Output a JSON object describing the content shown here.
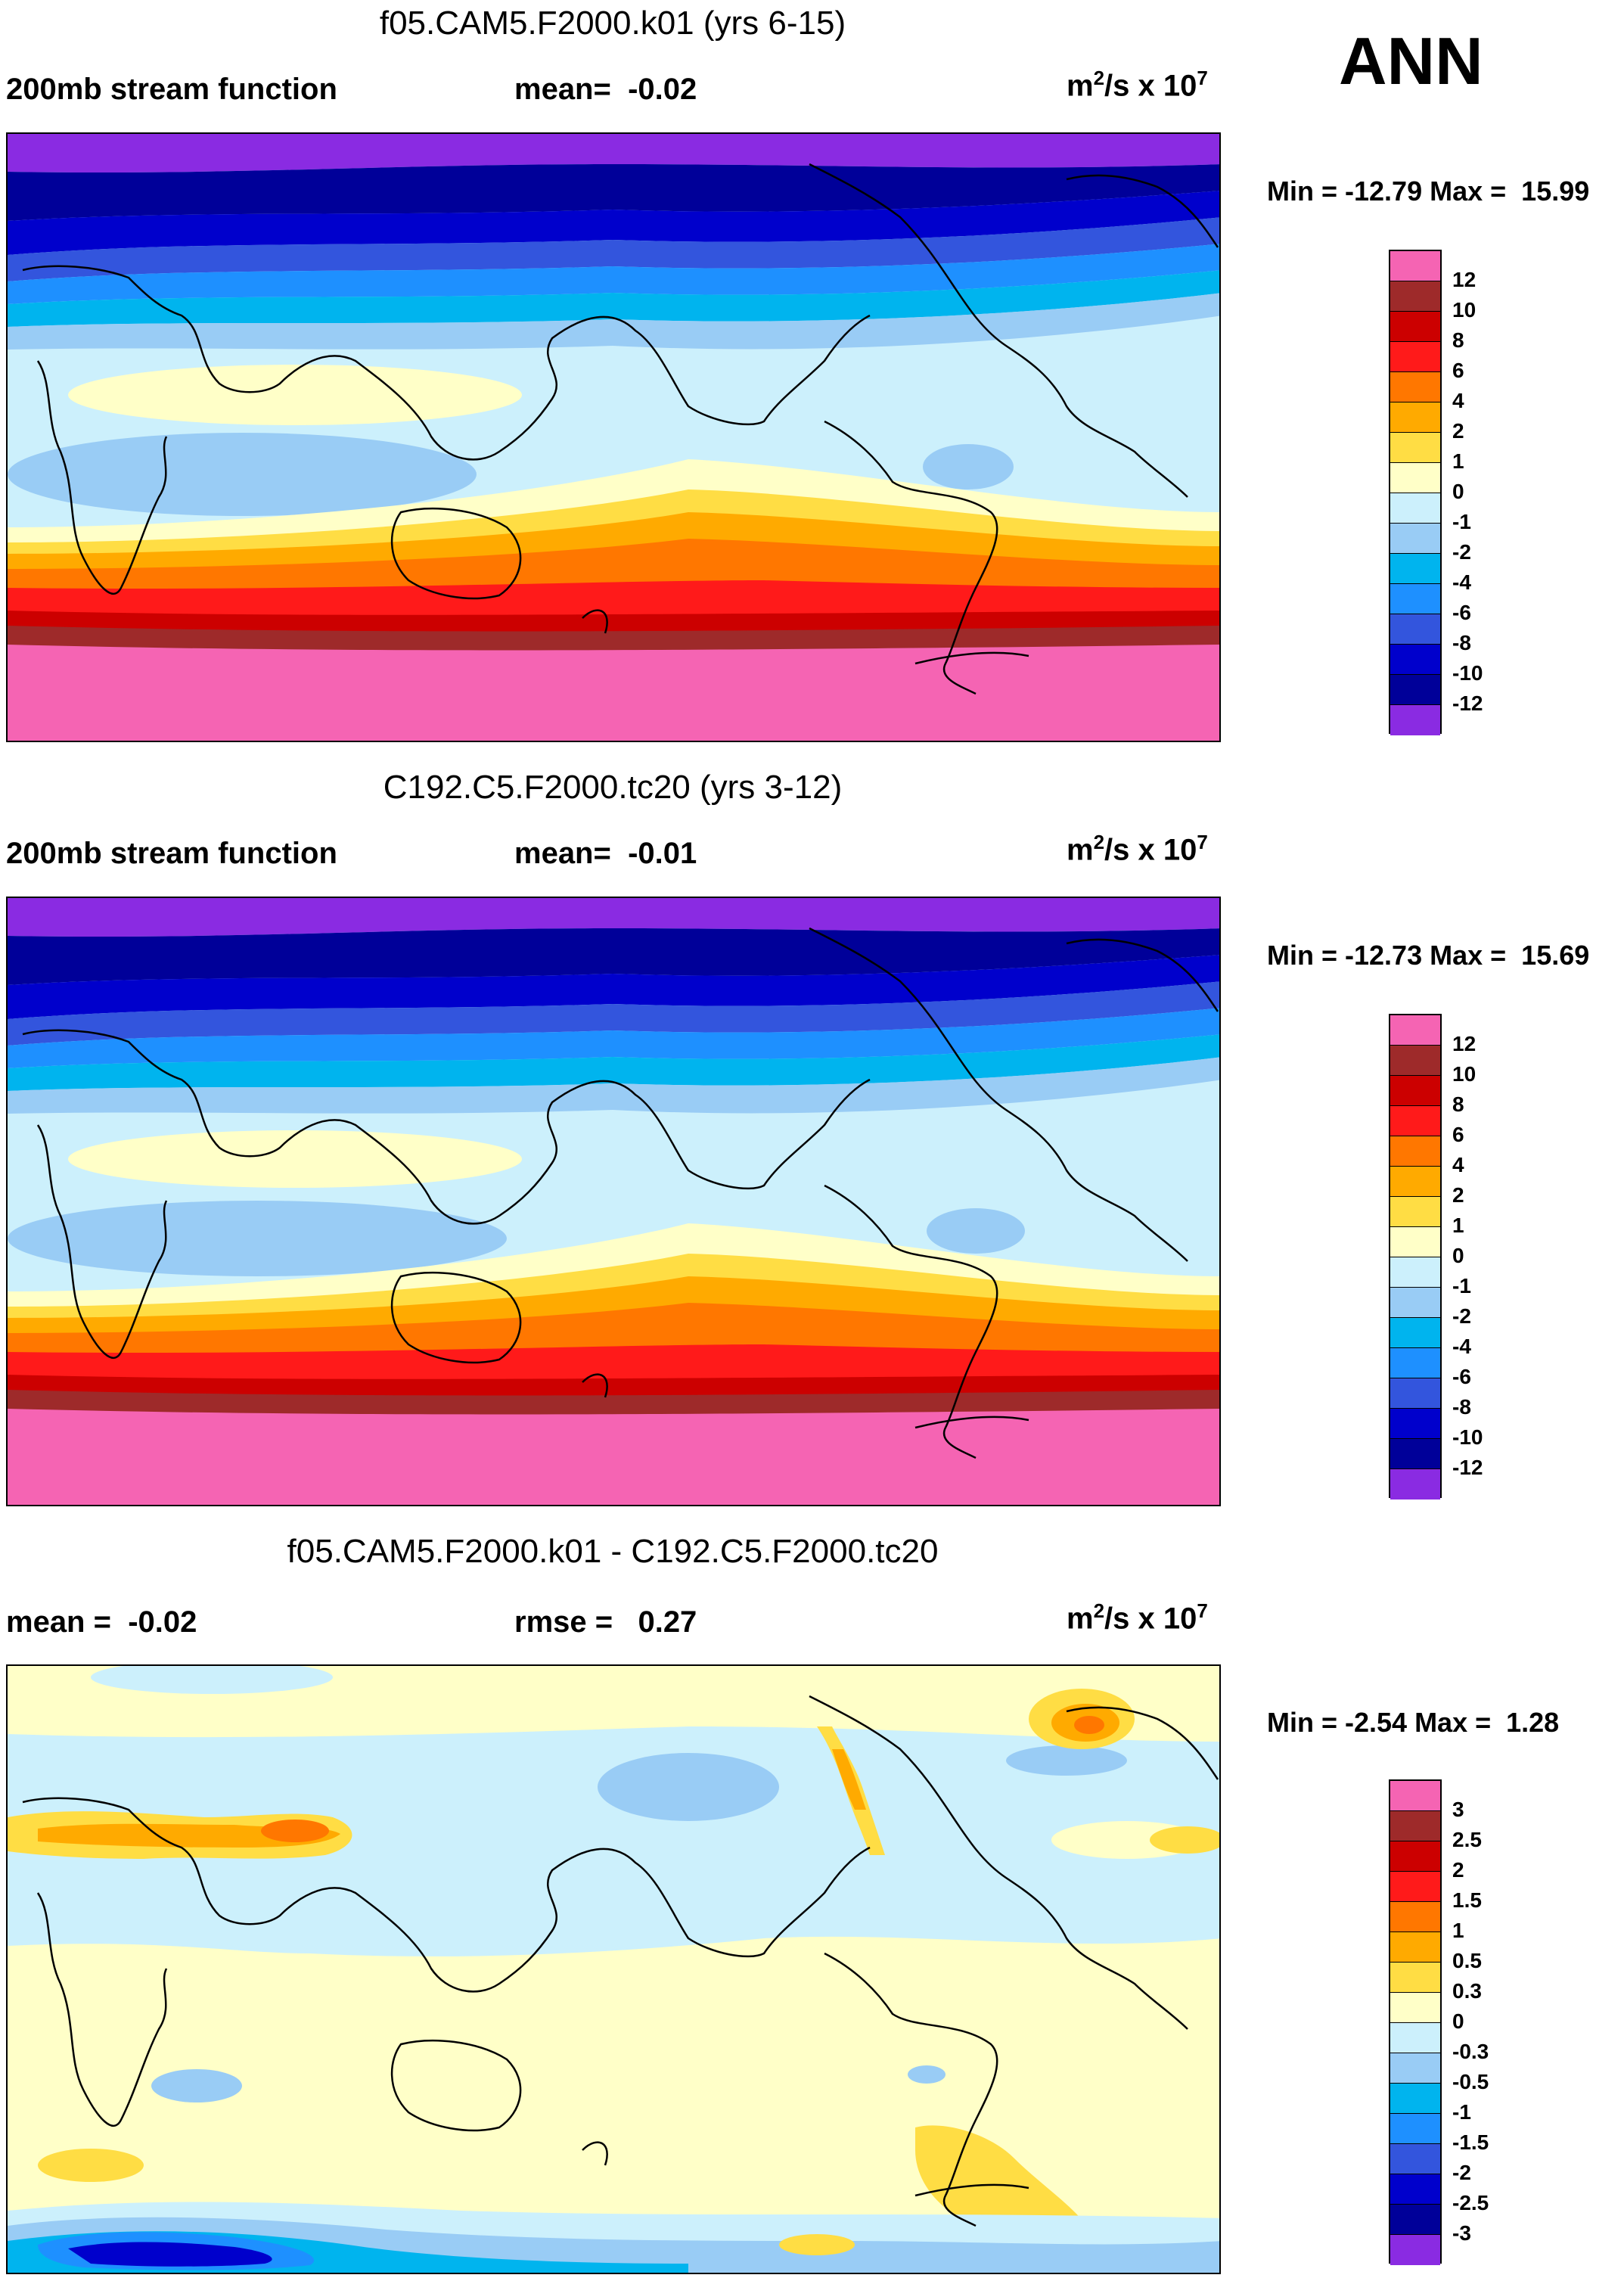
{
  "season": "ANN",
  "panels": [
    {
      "title": "f05.CAM5.F2000.k01 (yrs 6-15)",
      "field": "200mb stream function",
      "stat_label": "mean=",
      "stat_value": "-0.02",
      "units_base": "m",
      "units_sup": "2",
      "units_mid": "/s x 10",
      "units_exp": "7",
      "min_label": "Min = -12.79 Max =",
      "max_value": "15.99"
    },
    {
      "title": "C192.C5.F2000.tc20 (yrs 3-12)",
      "field": "200mb stream function",
      "stat_label": "mean=",
      "stat_value": "-0.01",
      "units_base": "m",
      "units_sup": "2",
      "units_mid": "/s x 10",
      "units_exp": "7",
      "min_label": "Min = -12.73 Max =",
      "max_value": "15.69"
    },
    {
      "title": "f05.CAM5.F2000.k01 - C192.C5.F2000.tc20",
      "field": "mean =",
      "field_value": "-0.02",
      "stat_label": "rmse =",
      "stat_value": "0.27",
      "units_base": "m",
      "units_sup": "2",
      "units_mid": "/s x 10",
      "units_exp": "7",
      "min_label": "Min =  -2.54 Max =",
      "max_value": "1.28"
    }
  ],
  "colorbar_main": {
    "labels": [
      "12",
      "10",
      "8",
      "6",
      "4",
      "2",
      "1",
      "0",
      "-1",
      "-2",
      "-4",
      "-6",
      "-8",
      "-10",
      "-12"
    ],
    "colors": [
      "#f564b3",
      "#9e2a2a",
      "#cc0000",
      "#ff1a1a",
      "#ff7700",
      "#ffaa00",
      "#ffdd44",
      "#ffffc8",
      "#ccf0fc",
      "#99ccf5",
      "#00b4ee",
      "#1e90ff",
      "#3355dd",
      "#0000cc",
      "#000099",
      "#8a2be2"
    ]
  },
  "colorbar_diff": {
    "labels": [
      "3",
      "2.5",
      "2",
      "1.5",
      "1",
      "0.5",
      "0.3",
      "0",
      "-0.3",
      "-0.5",
      "-1",
      "-1.5",
      "-2",
      "-2.5",
      "-3"
    ],
    "colors": [
      "#f564b3",
      "#9e2a2a",
      "#cc0000",
      "#ff1a1a",
      "#ff7700",
      "#ffaa00",
      "#ffdd44",
      "#ffffc8",
      "#ccf0fc",
      "#99ccf5",
      "#00b4ee",
      "#1e90ff",
      "#3355dd",
      "#0000cc",
      "#000099",
      "#8a2be2"
    ]
  }
}
